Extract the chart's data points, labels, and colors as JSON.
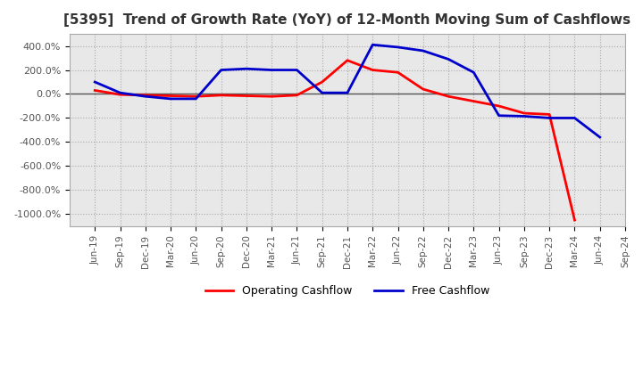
{
  "title": "[5395]  Trend of Growth Rate (YoY) of 12-Month Moving Sum of Cashflows",
  "title_fontsize": 11,
  "ylim": [
    -1100,
    500
  ],
  "yticks": [
    400,
    200,
    0,
    -200,
    -400,
    -600,
    -800,
    -1000
  ],
  "ytick_labels": [
    "400.0%",
    "200.0%",
    "0.0%",
    "-200.0%",
    "-400.0%",
    "-600.0%",
    "-800.0%",
    "-1000.0%"
  ],
  "x_labels": [
    "Jun-19",
    "Sep-19",
    "Dec-19",
    "Mar-20",
    "Jun-20",
    "Sep-20",
    "Dec-20",
    "Mar-21",
    "Jun-21",
    "Sep-21",
    "Dec-21",
    "Mar-22",
    "Jun-22",
    "Sep-22",
    "Dec-22",
    "Mar-23",
    "Jun-23",
    "Sep-23",
    "Dec-23",
    "Mar-24",
    "Jun-24",
    "Sep-24"
  ],
  "operating_cashflow": [
    30,
    -5,
    -10,
    -15,
    -20,
    -10,
    -15,
    -20,
    -10,
    100,
    280,
    200,
    180,
    40,
    -20,
    -60,
    -100,
    -160,
    -170,
    -1050,
    null,
    null
  ],
  "free_cashflow": [
    100,
    10,
    -20,
    -40,
    -40,
    200,
    210,
    200,
    200,
    10,
    10,
    410,
    390,
    360,
    290,
    180,
    -180,
    -185,
    -200,
    -200,
    -360,
    null
  ],
  "op_color": "#ff0000",
  "fc_color": "#0000cc",
  "grid_color": "#aaaaaa",
  "plot_bg_color": "#e8e8e8",
  "background_color": "#ffffff",
  "legend_labels": [
    "Operating Cashflow",
    "Free Cashflow"
  ],
  "line_width": 2.0
}
